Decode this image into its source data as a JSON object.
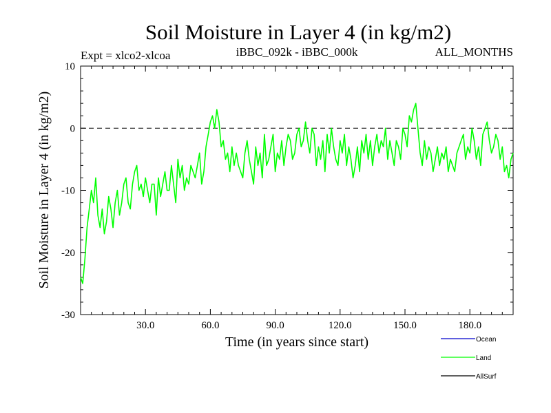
{
  "chart_data": {
    "type": "line",
    "title": "Soil Moisture in Layer 4 (in kg/m2)",
    "subtitle_left": "Expt = xlco2-xlcoa",
    "subtitle_center": "iBBC_092k - iBBC_000k",
    "subtitle_right": "ALL_MONTHS",
    "xlabel": "Time (in years since start)",
    "ylabel": "Soil Moisture in Layer 4 (in kg/m2)",
    "xlim": [
      0,
      200
    ],
    "ylim": [
      -30,
      10
    ],
    "x_ticks": [
      30,
      60,
      90,
      120,
      150,
      180
    ],
    "x_tick_labels": [
      "30.0",
      "60.0",
      "90.0",
      "120.0",
      "150.0",
      "180.0"
    ],
    "y_ticks": [
      10,
      0,
      -10,
      -20,
      -30
    ],
    "y_tick_labels": [
      "10",
      "0",
      "-10",
      "-20",
      "-30"
    ],
    "reference_line": 0,
    "legend": [
      {
        "name": "Ocean",
        "color": "#0000cc"
      },
      {
        "name": "Land",
        "color": "#00ff00"
      },
      {
        "name": "AllSurf",
        "color": "#000000"
      }
    ],
    "series": [
      {
        "name": "Land",
        "color": "#00ff00",
        "x": [
          0,
          1,
          2,
          3,
          4,
          5,
          6,
          7,
          8,
          9,
          10,
          11,
          12,
          13,
          14,
          15,
          16,
          17,
          18,
          19,
          20,
          21,
          22,
          23,
          24,
          25,
          26,
          27,
          28,
          29,
          30,
          31,
          32,
          33,
          34,
          35,
          36,
          37,
          38,
          39,
          40,
          41,
          42,
          43,
          44,
          45,
          46,
          47,
          48,
          49,
          50,
          51,
          52,
          53,
          54,
          55,
          56,
          57,
          58,
          59,
          60,
          61,
          62,
          63,
          64,
          65,
          66,
          67,
          68,
          69,
          70,
          71,
          72,
          73,
          74,
          75,
          76,
          77,
          78,
          79,
          80,
          81,
          82,
          83,
          84,
          85,
          86,
          87,
          88,
          89,
          90,
          91,
          92,
          93,
          94,
          95,
          96,
          97,
          98,
          99,
          100,
          101,
          102,
          103,
          104,
          105,
          106,
          107,
          108,
          109,
          110,
          111,
          112,
          113,
          114,
          115,
          116,
          117,
          118,
          119,
          120,
          121,
          122,
          123,
          124,
          125,
          126,
          127,
          128,
          129,
          130,
          131,
          132,
          133,
          134,
          135,
          136,
          137,
          138,
          139,
          140,
          141,
          142,
          143,
          144,
          145,
          146,
          147,
          148,
          149,
          150,
          151,
          152,
          153,
          154,
          155,
          156,
          157,
          158,
          159,
          160,
          161,
          162,
          163,
          164,
          165,
          166,
          167,
          168,
          169,
          170,
          171,
          172,
          173,
          174,
          175,
          176,
          177,
          178,
          179,
          180,
          181,
          182,
          183,
          184,
          185,
          186,
          187,
          188,
          189,
          190,
          191,
          192,
          193,
          194,
          195,
          196,
          197,
          198,
          199,
          200
        ],
        "y": [
          -24,
          -25,
          -21,
          -16,
          -13,
          -10,
          -12,
          -8,
          -14,
          -16,
          -13,
          -17,
          -15,
          -11,
          -13,
          -16,
          -12,
          -10,
          -14,
          -12,
          -9,
          -8,
          -12,
          -13,
          -9,
          -7,
          -6,
          -10,
          -9,
          -11,
          -8,
          -10,
          -12,
          -9,
          -9,
          -14,
          -8,
          -11,
          -9,
          -7,
          -10,
          -10,
          -6,
          -9,
          -12,
          -5,
          -8,
          -6,
          -10,
          -8,
          -9,
          -6,
          -7,
          -8,
          -6,
          -4,
          -9,
          -7,
          -3,
          -1,
          1,
          2,
          0,
          3,
          1,
          -3,
          -2,
          -5,
          -4,
          -7,
          -3,
          -6,
          -4,
          -6,
          -7,
          -8,
          -4,
          -2,
          -5,
          -7,
          -9,
          -3,
          -6,
          -4,
          -8,
          -1,
          -6,
          -5,
          -3,
          -1,
          -7,
          -4,
          -5,
          -2,
          -6,
          -3,
          -1,
          -2,
          -5,
          -4,
          -1,
          0,
          -3,
          -2,
          1,
          -2,
          -4,
          0,
          -1,
          -6,
          -3,
          -5,
          -2,
          -7,
          -1,
          -4,
          0,
          -3,
          -5,
          -6,
          -2,
          -4,
          -1,
          -6,
          -3,
          -5,
          -8,
          -6,
          -3,
          -7,
          -2,
          -4,
          -1,
          -5,
          -2,
          -6,
          -3,
          -1,
          -4,
          -2,
          -3,
          0,
          -5,
          -2,
          -4,
          -6,
          -2,
          -3,
          -5,
          0,
          -1,
          -3,
          2,
          1,
          3,
          4,
          0,
          -4,
          -6,
          -2,
          -5,
          -3,
          -4,
          -7,
          -5,
          -3,
          -6,
          -4,
          -5,
          -3,
          -7,
          -5,
          -6,
          -7,
          -4,
          -3,
          -2,
          -1,
          -5,
          -3,
          -4,
          0,
          -2,
          -5,
          -3,
          -6,
          -1,
          0,
          1,
          -2,
          -4,
          -3,
          -1,
          -2,
          -5,
          -3,
          -7,
          -6,
          -8,
          -5,
          -4
        ]
      }
    ]
  }
}
